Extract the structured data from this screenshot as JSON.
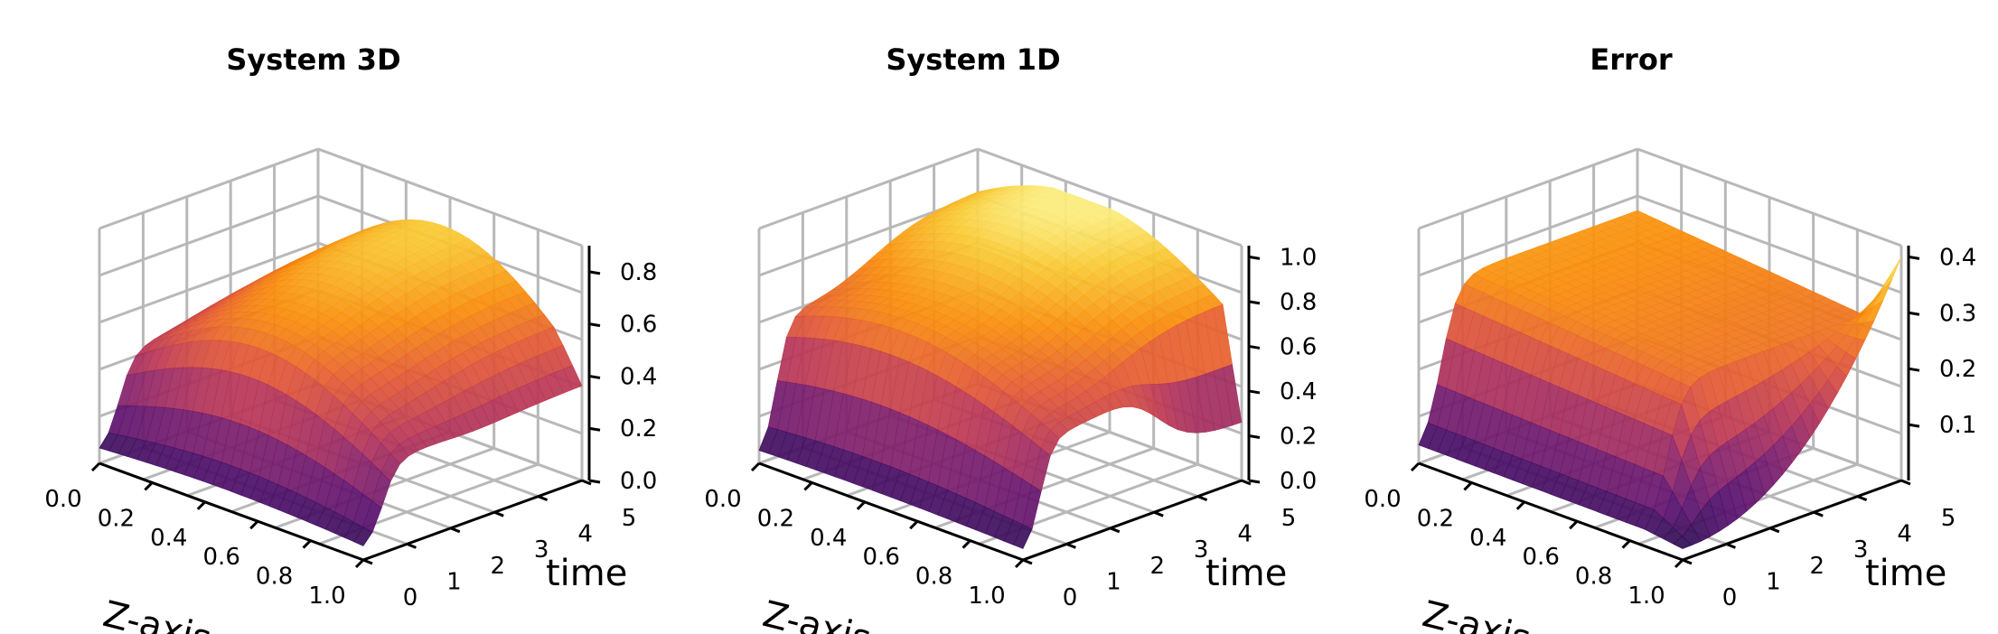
{
  "chart_data": [
    {
      "type": "surface3d",
      "title": "System 3D",
      "xlabel": "Z-axis",
      "ylabel": "time",
      "x_ticks": [
        "0.0",
        "0.2",
        "0.4",
        "0.6",
        "0.8",
        "1.0"
      ],
      "y_ticks": [
        "0",
        "1",
        "2",
        "3",
        "4",
        "5"
      ],
      "z_ticks": [
        "0.0",
        "0.2",
        "0.4",
        "0.6",
        "0.8"
      ],
      "xlim": [
        0,
        1
      ],
      "ylim": [
        0,
        5
      ],
      "zlim": [
        0,
        0.9
      ],
      "colormap": "inferno",
      "grid": true
    },
    {
      "type": "surface3d",
      "title": "System 1D",
      "xlabel": "Z-axis",
      "ylabel": "time",
      "x_ticks": [
        "0.0",
        "0.2",
        "0.4",
        "0.6",
        "0.8",
        "1.0"
      ],
      "y_ticks": [
        "0",
        "1",
        "2",
        "3",
        "4",
        "5"
      ],
      "z_ticks": [
        "0.0",
        "0.2",
        "0.4",
        "0.6",
        "0.8",
        "1.0"
      ],
      "xlim": [
        0,
        1
      ],
      "ylim": [
        0,
        5
      ],
      "zlim": [
        0,
        1.05
      ],
      "colormap": "inferno",
      "grid": true
    },
    {
      "type": "surface3d",
      "title": "Error",
      "xlabel": "Z-axis",
      "ylabel": "time",
      "x_ticks": [
        "0.0",
        "0.2",
        "0.4",
        "0.6",
        "0.8",
        "1.0"
      ],
      "y_ticks": [
        "0",
        "1",
        "2",
        "3",
        "4",
        "5"
      ],
      "z_ticks": [
        "0.1",
        "0.2",
        "0.3",
        "0.4"
      ],
      "xlim": [
        0,
        1
      ],
      "ylim": [
        0,
        5
      ],
      "zlim": [
        0,
        0.42
      ],
      "colormap": "inferno",
      "grid": true
    }
  ]
}
